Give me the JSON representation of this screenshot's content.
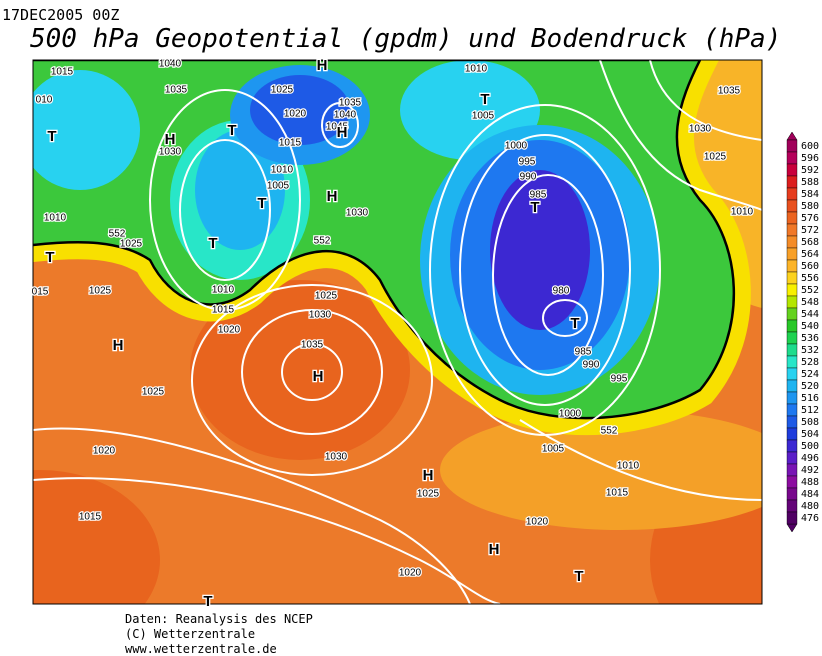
{
  "header": {
    "date": "17DEC2005 00Z",
    "title": "500 hPa Geopotential (gpdm) und Bodendruck (hPa)"
  },
  "map": {
    "labels": [
      "1015",
      "010",
      "1040",
      "1035",
      "1030",
      "H",
      "1025",
      "1020",
      "1015",
      "1010",
      "1005",
      "1035",
      "1040",
      "1045",
      "H",
      "T",
      "H",
      "T",
      "H",
      "1030",
      "T",
      "T",
      "1010",
      "1025",
      "552",
      "552",
      "T",
      "015",
      "1025",
      "1010",
      "1015",
      "1025",
      "1030",
      "1020",
      "1035",
      "H",
      "H",
      "1025",
      "1020",
      "1030",
      "H",
      "1025",
      "1015",
      "1020",
      "H",
      "T",
      "T",
      "1010",
      "T",
      "1005",
      "1000",
      "995",
      "990",
      "985",
      "T",
      "980",
      "T",
      "985",
      "990",
      "995",
      "1000",
      "1005",
      "552",
      "1010",
      "1015",
      "1020",
      "1035",
      "1030",
      "1025",
      "1010"
    ]
  },
  "colorbar": {
    "labels": [
      600,
      596,
      592,
      588,
      584,
      580,
      576,
      572,
      568,
      564,
      560,
      556,
      552,
      548,
      544,
      540,
      536,
      532,
      528,
      524,
      520,
      516,
      512,
      508,
      504,
      500,
      496,
      492,
      488,
      484,
      480,
      476
    ],
    "colors": [
      "#a0005a",
      "#b4005a",
      "#c8003c",
      "#dc1e1e",
      "#e63c1e",
      "#e8501e",
      "#ec6420",
      "#f07828",
      "#f48c28",
      "#f8a028",
      "#fcb428",
      "#fcd21e",
      "#f8f000",
      "#b4e600",
      "#64d21e",
      "#28c828",
      "#1ed250",
      "#1edc8c",
      "#28e6c8",
      "#28d2f0",
      "#1eb4f0",
      "#1e96f0",
      "#1e78f0",
      "#1e5ae6",
      "#1e3cdc",
      "#3c28d2",
      "#5a1ec8",
      "#7814b4",
      "#8c0ca0",
      "#78088c",
      "#640478",
      "#500064"
    ]
  },
  "footer": [
    "Daten: Reanalysis des NCEP",
    "(C) Wetterzentrale",
    "www.wetterzentrale.de"
  ]
}
